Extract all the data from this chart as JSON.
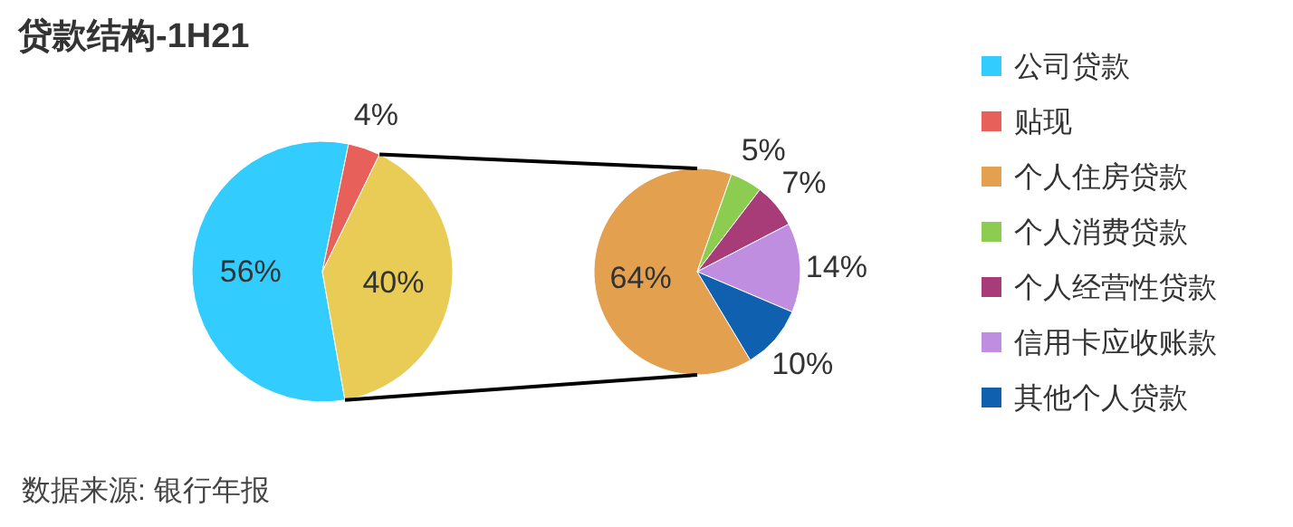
{
  "chart_data": [
    {
      "type": "pie",
      "title": "贷款结构-1H21",
      "categories": [
        "公司贷款",
        "贴现",
        null
      ],
      "values": [
        56,
        4,
        40
      ],
      "colors": [
        "#33ccff",
        "#e8605a",
        "#e8cc55"
      ],
      "value_labels": [
        "56%",
        "4%",
        "40%"
      ],
      "legend": "right",
      "annotations": [
        "数据来源: 银行年报"
      ]
    },
    {
      "type": "pie",
      "categories": [
        "个人住房贷款",
        "个人消费贷款",
        "个人经营性贷款",
        "信用卡应收账款",
        "其他个人贷款"
      ],
      "values": [
        64,
        5,
        7,
        14,
        10
      ],
      "colors": [
        "#e3a04f",
        "#8ccc50",
        "#a83c78",
        "#c08ee0",
        "#1060b0"
      ],
      "value_labels": [
        "64%",
        "5%",
        "7%",
        "14%",
        "10%"
      ],
      "legend": "right"
    }
  ]
}
